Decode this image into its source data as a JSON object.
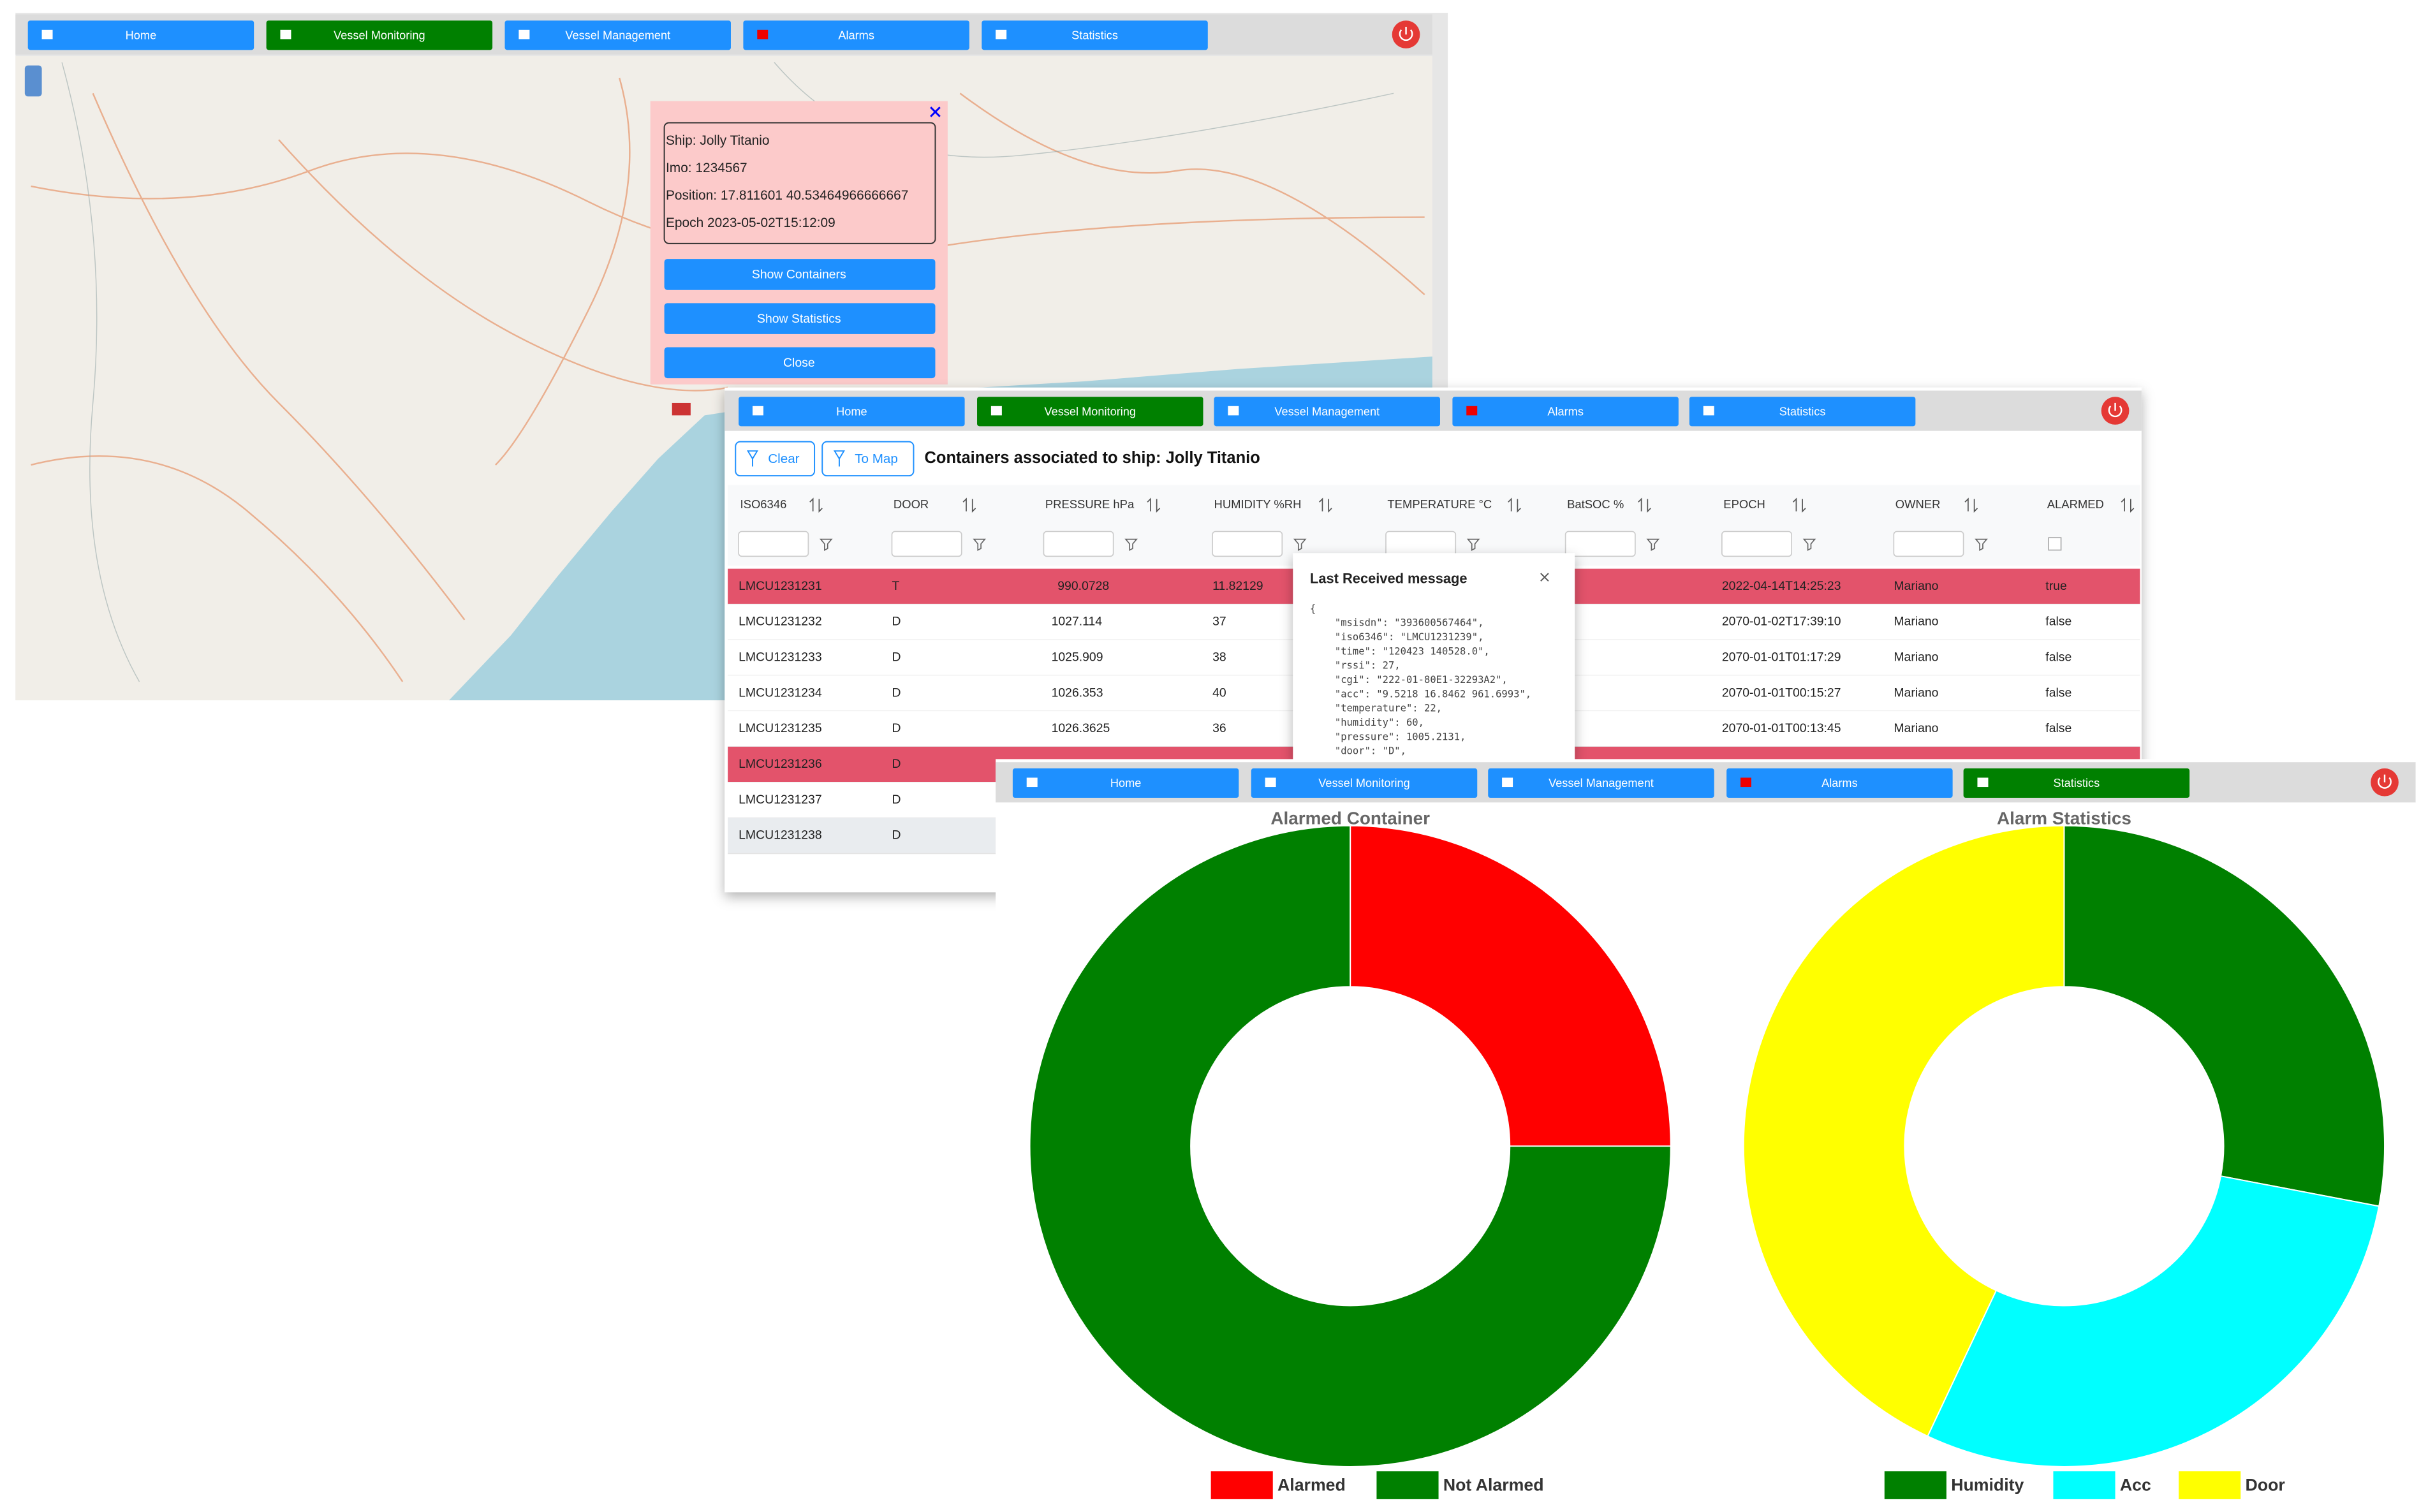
{
  "nav": [
    "Home",
    "Vessel Monitoring",
    "Vessel Management",
    "Alarms",
    "Statistics"
  ],
  "map_window": {
    "popup": {
      "lines": [
        "Ship: Jolly Titanio",
        "Imo: 1234567",
        "Position: 17.811601 40.53464966666667",
        "Epoch 2023-05-02T15:12:09"
      ],
      "buttons": [
        "Show Containers",
        "Show Statistics",
        "Close"
      ]
    }
  },
  "table_window": {
    "buttons": [
      "Clear",
      "To Map"
    ],
    "title": "Containers associated to ship: Jolly Titanio",
    "columns": [
      "ISO6346",
      "DOOR",
      "PRESSURE hPa",
      "HUMIDITY %RH",
      "TEMPERATURE °C",
      "BatSOC %",
      "EPOCH",
      "OWNER",
      "ALARMED"
    ],
    "rows": [
      {
        "iso": "LMCU1231231",
        "door": "T",
        "pressure": "990.0728",
        "humidity": "11.82129",
        "epoch": "2022-04-14T14:25:23",
        "owner": "Mariano",
        "alarmed": "true"
      },
      {
        "iso": "LMCU1231232",
        "door": "D",
        "pressure": "1027.114",
        "humidity": "37",
        "epoch": "2070-01-02T17:39:10",
        "owner": "Mariano",
        "alarmed": "false"
      },
      {
        "iso": "LMCU1231233",
        "door": "D",
        "pressure": "1025.909",
        "humidity": "38",
        "epoch": "2070-01-01T01:17:29",
        "owner": "Mariano",
        "alarmed": "false"
      },
      {
        "iso": "LMCU1231234",
        "door": "D",
        "pressure": "1026.353",
        "humidity": "40",
        "epoch": "2070-01-01T00:15:27",
        "owner": "Mariano",
        "alarmed": "false"
      },
      {
        "iso": "LMCU1231235",
        "door": "D",
        "pressure": "1026.3625",
        "humidity": "36",
        "epoch": "2070-01-01T00:13:45",
        "owner": "Mariano",
        "alarmed": "false"
      },
      {
        "iso": "LMCU1231236",
        "door": "D"
      },
      {
        "iso": "LMCU1231237",
        "door": "D"
      },
      {
        "iso": "LMCU1231238",
        "door": "D"
      }
    ],
    "dialog": {
      "title": "Last Received message",
      "lines": [
        "{",
        "\"msisdn\": \"393600567464\",",
        "\"iso6346\": \"LMCU1231239\",",
        "\"time\": \"120423 140528.0\",",
        "\"rssi\": 27,",
        "\"cgi\": \"222-01-80E1-32293A2\",",
        "\"acc\": \"9.5218 16.8462 961.6993\",",
        "\"temperature\": 22,",
        "\"humidity\": 60,",
        "\"pressure\": 1005.2131,",
        "\"door\": \"D\","
      ]
    }
  },
  "chart_data": [
    {
      "type": "pie",
      "title": "Alarmed Container",
      "categories": [
        "Alarmed",
        "Not Alarmed"
      ],
      "values": [
        25,
        75
      ],
      "colors": [
        "#ff0000",
        "#008000"
      ]
    },
    {
      "type": "pie",
      "title": "Alarm Statistics",
      "categories": [
        "Humidity",
        "Acc",
        "Door"
      ],
      "values": [
        28,
        29,
        43
      ],
      "colors": [
        "#008000",
        "#00ffff",
        "#ffff00"
      ]
    }
  ]
}
